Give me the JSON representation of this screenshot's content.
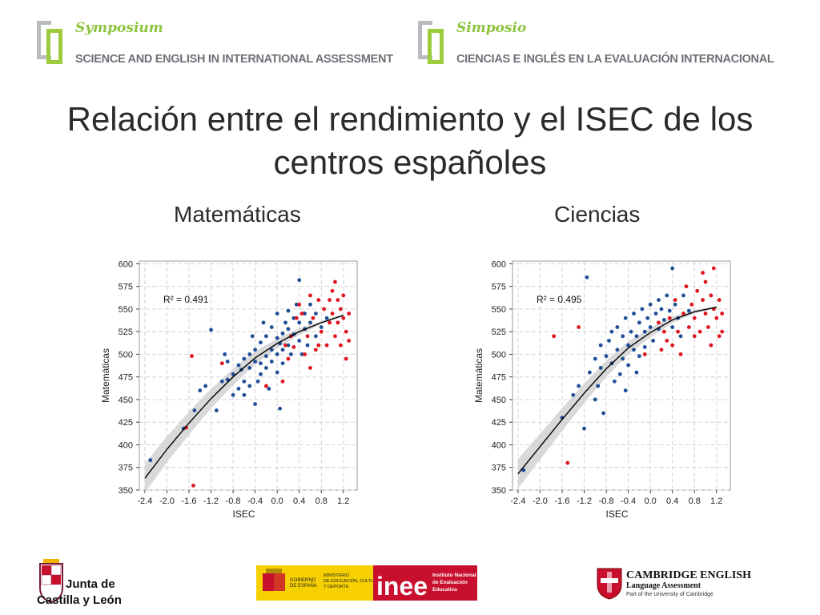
{
  "header_left": {
    "brand": "Symposium",
    "subtitle": "SCIENCE AND ENGLISH IN INTERNATIONAL ASSESSMENT"
  },
  "header_right": {
    "brand": "Simposio",
    "subtitle": "CIENCIAS E INGLÉS EN LA  EVALUACIÓN INTERNACIONAL"
  },
  "title_line1": "Relación entre el rendimiento y el ISEC de los",
  "title_line2": "centros españoles",
  "footer": {
    "jcyl_line1": "Junta de",
    "jcyl_line2": "Castilla y León",
    "gov_text1": "GOBIERNO",
    "gov_text2": "DE ESPAÑA",
    "ministry_text1": "MINISTERIO",
    "ministry_text2": "DE EDUCACIÓN, CULTURA",
    "ministry_text3": "Y DEPORTE",
    "inee_logo": "inee",
    "inee_text1": "Instituto Nacional",
    "inee_text2": "de Evaluación",
    "inee_text3": "Educativa",
    "cambridge_line1": "CAMBRIDGE ENGLISH",
    "cambridge_line2": "Language Assessment",
    "cambridge_line3": "Part of the University of Cambridge"
  },
  "colors": {
    "blue": "#1f4e96",
    "red": "#e0141e",
    "green": "#9ccb3b",
    "grey_band": "#cfcfcf"
  },
  "chart_data": [
    {
      "type": "scatter",
      "subject_title": "Matemáticas",
      "xlabel": "ISEC",
      "ylabel": "Matemáticas",
      "annotation": "R² = 0.491",
      "r2": 0.491,
      "xlim": [
        -2.5,
        1.45
      ],
      "ylim": [
        350,
        603
      ],
      "xticks": [
        "-2.4",
        "-2.0",
        "-1.6",
        "-1.2",
        "-0.8",
        "-0.4",
        "0.0",
        "0.4",
        "0.8",
        "1.2"
      ],
      "yticks": [
        "350",
        "375",
        "400",
        "425",
        "450",
        "475",
        "500",
        "525",
        "550",
        "575",
        "600"
      ],
      "fit_curve": {
        "x": [
          -2.4,
          -2.0,
          -1.6,
          -1.2,
          -0.8,
          -0.4,
          0.0,
          0.4,
          0.8,
          1.2
        ],
        "y": [
          363,
          395,
          424,
          451,
          475,
          496,
          512,
          525,
          535,
          543
        ]
      },
      "series": [
        {
          "color_key": "blue",
          "points": [
            [
              -2.3,
              383
            ],
            [
              -1.7,
              418
            ],
            [
              -1.5,
              438
            ],
            [
              -1.4,
              460
            ],
            [
              -1.2,
              527
            ],
            [
              -1.1,
              438
            ],
            [
              -1.0,
              470
            ],
            [
              -0.9,
              472
            ],
            [
              -0.9,
              492
            ],
            [
              -0.8,
              478
            ],
            [
              -0.8,
              455
            ],
            [
              -0.7,
              462
            ],
            [
              -0.7,
              488
            ],
            [
              -0.6,
              495
            ],
            [
              -0.6,
              470
            ],
            [
              -0.6,
              455
            ],
            [
              -0.5,
              500
            ],
            [
              -0.5,
              485
            ],
            [
              -0.5,
              465
            ],
            [
              -0.4,
              445
            ],
            [
              -0.4,
              505
            ],
            [
              -0.4,
              492
            ],
            [
              -0.3,
              490
            ],
            [
              -0.3,
              478
            ],
            [
              -0.3,
              513
            ],
            [
              -0.2,
              520
            ],
            [
              -0.2,
              498
            ],
            [
              -0.2,
              485
            ],
            [
              -0.1,
              505
            ],
            [
              -0.1,
              530
            ],
            [
              -0.1,
              492
            ],
            [
              0.0,
              518
            ],
            [
              0.0,
              500
            ],
            [
              0.0,
              480
            ],
            [
              0.0,
              545
            ],
            [
              0.05,
              512
            ],
            [
              0.1,
              523
            ],
            [
              0.1,
              505
            ],
            [
              0.1,
              490
            ],
            [
              0.15,
              535
            ],
            [
              0.2,
              548
            ],
            [
              0.2,
              528
            ],
            [
              0.2,
              510
            ],
            [
              0.25,
              500
            ],
            [
              0.3,
              540
            ],
            [
              0.3,
              522
            ],
            [
              0.35,
              555
            ],
            [
              0.4,
              582
            ],
            [
              0.4,
              535
            ],
            [
              0.4,
              515
            ],
            [
              0.45,
              500
            ],
            [
              0.5,
              545
            ],
            [
              0.5,
              528
            ],
            [
              0.55,
              510
            ],
            [
              0.6,
              555
            ],
            [
              0.6,
              535
            ],
            [
              0.7,
              520
            ],
            [
              0.7,
              545
            ],
            [
              0.8,
              530
            ],
            [
              0.9,
              540
            ],
            [
              -1.3,
              465
            ],
            [
              -0.95,
              500
            ],
            [
              -0.65,
              483
            ],
            [
              -0.35,
              470
            ],
            [
              -0.15,
              462
            ],
            [
              0.05,
              440
            ],
            [
              -0.45,
              520
            ],
            [
              -0.25,
              535
            ]
          ]
        },
        {
          "color_key": "red",
          "points": [
            [
              -1.55,
              498
            ],
            [
              -1.65,
              419
            ],
            [
              -1.52,
              355
            ],
            [
              -1.0,
              490
            ],
            [
              -0.2,
              465
            ],
            [
              0.1,
              470
            ],
            [
              0.2,
              495
            ],
            [
              0.3,
              508
            ],
            [
              0.4,
              555
            ],
            [
              0.5,
              500
            ],
            [
              0.55,
              520
            ],
            [
              0.6,
              485
            ],
            [
              0.65,
              540
            ],
            [
              0.7,
              505
            ],
            [
              0.75,
              560
            ],
            [
              0.8,
              525
            ],
            [
              0.85,
              550
            ],
            [
              0.9,
              510
            ],
            [
              0.95,
              535
            ],
            [
              1.0,
              570
            ],
            [
              1.0,
              545
            ],
            [
              1.05,
              580
            ],
            [
              1.05,
              520
            ],
            [
              1.1,
              560
            ],
            [
              1.1,
              535
            ],
            [
              1.15,
              550
            ],
            [
              1.15,
              510
            ],
            [
              1.2,
              565
            ],
            [
              1.2,
              540
            ],
            [
              1.25,
              525
            ],
            [
              1.25,
              495
            ],
            [
              1.3,
              545
            ],
            [
              1.3,
              515
            ],
            [
              0.45,
              545
            ],
            [
              0.25,
              520
            ],
            [
              0.35,
              540
            ],
            [
              0.15,
              510
            ],
            [
              0.75,
              510
            ],
            [
              0.95,
              560
            ],
            [
              0.6,
              565
            ]
          ]
        }
      ]
    },
    {
      "type": "scatter",
      "subject_title": "Ciencias",
      "xlabel": "ISEC",
      "ylabel": "Matemáticas",
      "annotation": "R² = 0.495",
      "r2": 0.495,
      "xlim": [
        -2.5,
        1.45
      ],
      "ylim": [
        350,
        603
      ],
      "xticks": [
        "-2.4",
        "-2.0",
        "-1.6",
        "-1.2",
        "-0.8",
        "-0.4",
        "0.0",
        "0.4",
        "0.8",
        "1.2"
      ],
      "yticks": [
        "350",
        "375",
        "400",
        "425",
        "450",
        "475",
        "500",
        "525",
        "550",
        "575",
        "600"
      ],
      "fit_curve": {
        "x": [
          -2.4,
          -2.0,
          -1.6,
          -1.2,
          -0.8,
          -0.4,
          0.0,
          0.4,
          0.8,
          1.2
        ],
        "y": [
          368,
          398,
          428,
          457,
          484,
          507,
          524,
          538,
          547,
          552
        ]
      },
      "series": [
        {
          "color_key": "blue",
          "points": [
            [
              -2.3,
              372
            ],
            [
              -1.6,
              430
            ],
            [
              -1.4,
              455
            ],
            [
              -1.3,
              465
            ],
            [
              -1.2,
              418
            ],
            [
              -1.15,
              585
            ],
            [
              -1.1,
              480
            ],
            [
              -1.0,
              495
            ],
            [
              -0.9,
              485
            ],
            [
              -0.9,
              510
            ],
            [
              -0.85,
              435
            ],
            [
              -0.8,
              498
            ],
            [
              -0.75,
              515
            ],
            [
              -0.7,
              490
            ],
            [
              -0.7,
              525
            ],
            [
              -0.6,
              505
            ],
            [
              -0.6,
              530
            ],
            [
              -0.55,
              478
            ],
            [
              -0.5,
              520
            ],
            [
              -0.5,
              495
            ],
            [
              -0.45,
              540
            ],
            [
              -0.4,
              510
            ],
            [
              -0.4,
              488
            ],
            [
              -0.35,
              525
            ],
            [
              -0.3,
              545
            ],
            [
              -0.3,
              505
            ],
            [
              -0.25,
              520
            ],
            [
              -0.2,
              535
            ],
            [
              -0.2,
              498
            ],
            [
              -0.15,
              550
            ],
            [
              -0.1,
              525
            ],
            [
              -0.1,
              508
            ],
            [
              -0.05,
              540
            ],
            [
              0.0,
              555
            ],
            [
              0.0,
              530
            ],
            [
              0.05,
              515
            ],
            [
              0.1,
              545
            ],
            [
              0.15,
              560
            ],
            [
              0.15,
              528
            ],
            [
              0.2,
              550
            ],
            [
              0.25,
              538
            ],
            [
              0.3,
              565
            ],
            [
              0.35,
              548
            ],
            [
              0.4,
              595
            ],
            [
              0.4,
              530
            ],
            [
              0.45,
              555
            ],
            [
              0.5,
              540
            ],
            [
              0.55,
              520
            ],
            [
              0.6,
              565
            ],
            [
              0.7,
              548
            ],
            [
              -1.0,
              450
            ],
            [
              -0.95,
              465
            ],
            [
              -0.65,
              470
            ],
            [
              -0.45,
              460
            ],
            [
              -0.25,
              480
            ]
          ]
        },
        {
          "color_key": "red",
          "points": [
            [
              -1.75,
              520
            ],
            [
              -1.5,
              380
            ],
            [
              -1.3,
              530
            ],
            [
              -0.1,
              500
            ],
            [
              0.2,
              505
            ],
            [
              0.3,
              515
            ],
            [
              0.35,
              540
            ],
            [
              0.45,
              560
            ],
            [
              0.5,
              525
            ],
            [
              0.6,
              545
            ],
            [
              0.65,
              575
            ],
            [
              0.7,
              530
            ],
            [
              0.75,
              555
            ],
            [
              0.8,
              540
            ],
            [
              0.85,
              570
            ],
            [
              0.9,
              525
            ],
            [
              0.95,
              560
            ],
            [
              1.0,
              545
            ],
            [
              1.0,
              580
            ],
            [
              1.05,
              530
            ],
            [
              1.1,
              565
            ],
            [
              1.15,
              550
            ],
            [
              1.15,
              595
            ],
            [
              1.2,
              540
            ],
            [
              1.25,
              560
            ],
            [
              1.25,
              520
            ],
            [
              1.3,
              545
            ],
            [
              1.3,
              525
            ],
            [
              0.4,
              510
            ],
            [
              0.55,
              500
            ],
            [
              0.25,
              525
            ],
            [
              0.15,
              535
            ],
            [
              0.8,
              520
            ],
            [
              1.1,
              510
            ],
            [
              0.95,
              590
            ]
          ]
        }
      ]
    }
  ]
}
